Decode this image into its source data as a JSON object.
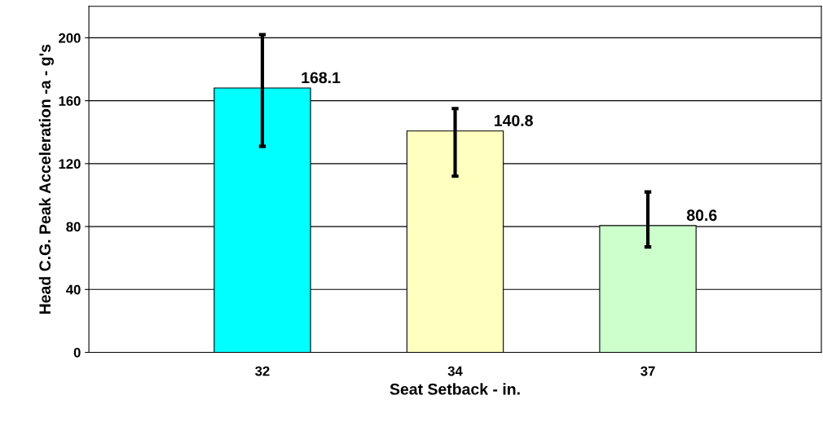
{
  "chart_data": {
    "type": "bar",
    "xlabel": "Seat Setback - in.",
    "ylabel": "Head C.G. Peak Acceleration -a - g's",
    "categories": [
      "32",
      "34",
      "37"
    ],
    "values": [
      168.1,
      140.8,
      80.6
    ],
    "colors": [
      "#00ffff",
      "#ffffc0",
      "#ccffcc"
    ],
    "errors": [
      [
        131,
        202
      ],
      [
        112,
        155
      ],
      [
        67,
        102
      ]
    ],
    "data_labels": true,
    "ylim": [
      0,
      220
    ],
    "yticks": [
      0,
      40,
      80,
      120,
      160,
      200
    ],
    "grid": "y"
  }
}
